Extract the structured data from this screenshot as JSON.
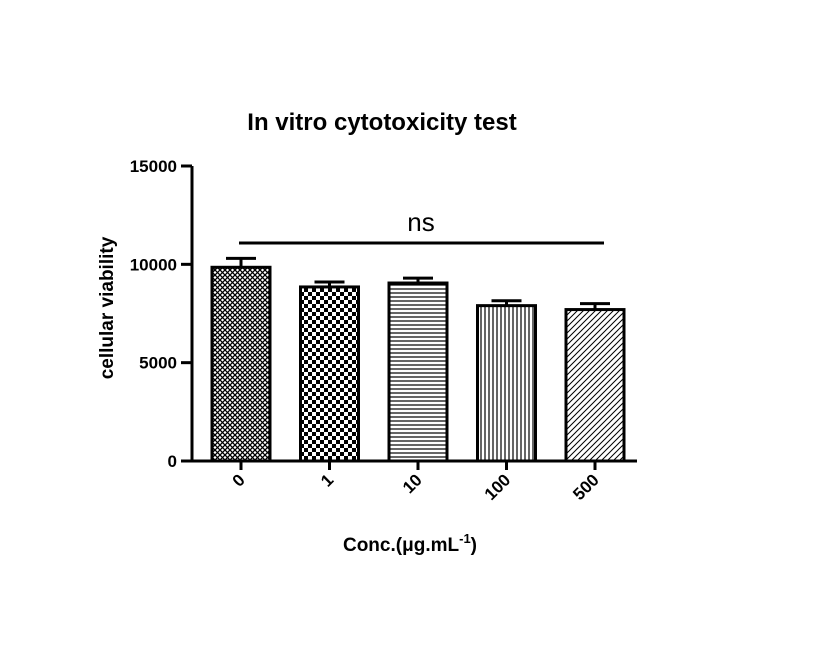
{
  "chart_data": {
    "type": "bar",
    "title": "In vitro cytotoxicity test",
    "xlabel": "Conc.(μg.mL",
    "xlabel_sup": "-1",
    "xlabel_close": ")",
    "ylabel": "cellular viability",
    "categories": [
      "0",
      "1",
      "10",
      "100",
      "500"
    ],
    "values": [
      9850,
      8850,
      9050,
      7900,
      7700
    ],
    "errors": [
      450,
      250,
      250,
      250,
      300
    ],
    "patterns": [
      "crosshatch",
      "checker",
      "horizontal",
      "vertical",
      "diagonal"
    ],
    "ylim": [
      0,
      15000
    ],
    "yticks": [
      0,
      5000,
      10000,
      15000
    ],
    "ytick_labels": [
      "0",
      "5000",
      "10000",
      "15000"
    ],
    "grid": false,
    "annotation": {
      "text": "ns",
      "from_category": "0",
      "to_category": "500"
    },
    "colors": {
      "bar_fill": "#ffffff",
      "pattern": "#000000",
      "axis": "#000000"
    }
  }
}
